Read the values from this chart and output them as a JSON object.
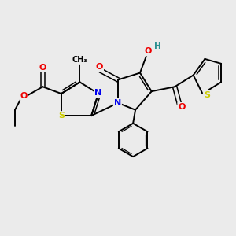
{
  "background_color": "#ebebeb",
  "atoms": {
    "colors": {
      "C": "#000000",
      "N": "#0000ee",
      "O": "#ee0000",
      "S": "#cccc00",
      "H": "#2a9090"
    }
  },
  "bond_color": "#000000",
  "bond_width": 1.4
}
